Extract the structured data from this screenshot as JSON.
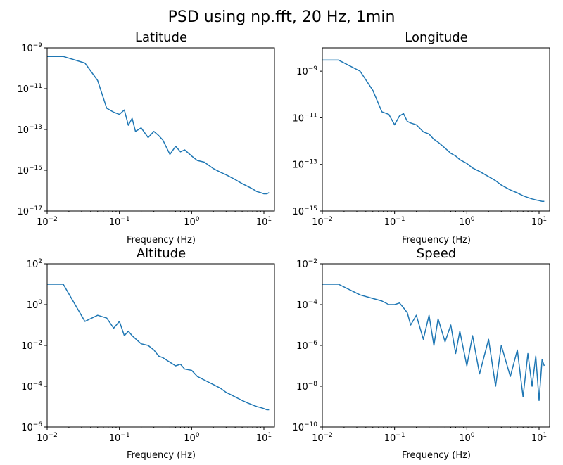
{
  "figure": {
    "suptitle": "PSD using np.fft, 20 Hz, 1min"
  },
  "series_color": "#1f77b4",
  "chart_data": [
    {
      "type": "line",
      "title": "Latitude",
      "xlabel": "Frequency (Hz)",
      "ylabel": "",
      "xscale": "log",
      "yscale": "log",
      "xlim": [
        0.01,
        14
      ],
      "ylim": [
        1e-17,
        1e-09
      ],
      "xticks": [
        {
          "base": "10",
          "exp": "−2",
          "value": 0.01
        },
        {
          "base": "10",
          "exp": "−1",
          "value": 0.1
        },
        {
          "base": "10",
          "exp": "0",
          "value": 1
        },
        {
          "base": "10",
          "exp": "1",
          "value": 10
        }
      ],
      "yticks": [
        {
          "base": "10",
          "exp": "−17",
          "value": 1e-17
        },
        {
          "base": "10",
          "exp": "−15",
          "value": 1e-15
        },
        {
          "base": "10",
          "exp": "−13",
          "value": 1e-13
        },
        {
          "base": "10",
          "exp": "−11",
          "value": 1e-11
        },
        {
          "base": "10",
          "exp": "−9",
          "value": 1e-09
        }
      ],
      "grid": false,
      "x": [
        0.01,
        0.0167,
        0.0333,
        0.05,
        0.0667,
        0.0833,
        0.1,
        0.117,
        0.133,
        0.15,
        0.167,
        0.2,
        0.25,
        0.3,
        0.35,
        0.4,
        0.5,
        0.6,
        0.7,
        0.8,
        1.0,
        1.2,
        1.5,
        2.0,
        2.5,
        3.0,
        4.0,
        5.0,
        6.0,
        7.0,
        8.0,
        9.0,
        10.0,
        11.0,
        11.8
      ],
      "y": [
        3.8e-10,
        3.8e-10,
        1.8e-10,
        2.5e-11,
        1.1e-12,
        7e-13,
        5.5e-13,
        9e-13,
        1.6e-13,
        3.5e-13,
        8e-14,
        1.2e-13,
        4e-14,
        8e-14,
        5e-14,
        3e-14,
        6e-15,
        1.5e-14,
        8e-15,
        1e-14,
        5e-15,
        3e-15,
        2.5e-15,
        1.2e-15,
        8e-16,
        6e-16,
        3.5e-16,
        2.2e-16,
        1.6e-16,
        1.2e-16,
        9e-17,
        8e-17,
        7e-17,
        7e-17,
        8e-17
      ]
    },
    {
      "type": "line",
      "title": "Longitude",
      "xlabel": "Frequency (Hz)",
      "ylabel": "",
      "xscale": "log",
      "yscale": "log",
      "xlim": [
        0.01,
        14
      ],
      "ylim": [
        1e-15,
        1e-08
      ],
      "xticks": [
        {
          "base": "10",
          "exp": "−2",
          "value": 0.01
        },
        {
          "base": "10",
          "exp": "−1",
          "value": 0.1
        },
        {
          "base": "10",
          "exp": "0",
          "value": 1
        },
        {
          "base": "10",
          "exp": "1",
          "value": 10
        }
      ],
      "yticks": [
        {
          "base": "10",
          "exp": "−15",
          "value": 1e-15
        },
        {
          "base": "10",
          "exp": "−13",
          "value": 1e-13
        },
        {
          "base": "10",
          "exp": "−11",
          "value": 1e-11
        },
        {
          "base": "10",
          "exp": "−9",
          "value": 1e-09
        }
      ],
      "grid": false,
      "x": [
        0.01,
        0.0167,
        0.0333,
        0.05,
        0.0667,
        0.0833,
        0.1,
        0.117,
        0.133,
        0.15,
        0.167,
        0.2,
        0.25,
        0.3,
        0.35,
        0.4,
        0.5,
        0.6,
        0.7,
        0.8,
        1.0,
        1.2,
        1.5,
        2.0,
        2.5,
        3.0,
        4.0,
        5.0,
        6.0,
        7.0,
        8.0,
        9.0,
        10.0,
        11.0,
        11.8
      ],
      "y": [
        3e-09,
        3e-09,
        1e-09,
        1.5e-10,
        1.8e-11,
        1.4e-11,
        5e-12,
        1.2e-11,
        1.5e-11,
        7e-12,
        6e-12,
        5e-12,
        2.5e-12,
        2e-12,
        1.2e-12,
        9e-13,
        5e-13,
        3e-13,
        2.3e-13,
        1.6e-13,
        1.1e-13,
        7e-14,
        5e-14,
        3e-14,
        2e-14,
        1.3e-14,
        8e-15,
        6e-15,
        4.5e-15,
        3.8e-15,
        3.3e-15,
        3e-15,
        2.8e-15,
        2.6e-15,
        2.6e-15
      ]
    },
    {
      "type": "line",
      "title": "Altitude",
      "xlabel": "Frequency (Hz)",
      "ylabel": "",
      "xscale": "log",
      "yscale": "log",
      "xlim": [
        0.01,
        14
      ],
      "ylim": [
        1e-06,
        100
      ],
      "xticks": [
        {
          "base": "10",
          "exp": "−2",
          "value": 0.01
        },
        {
          "base": "10",
          "exp": "−1",
          "value": 0.1
        },
        {
          "base": "10",
          "exp": "0",
          "value": 1
        },
        {
          "base": "10",
          "exp": "1",
          "value": 10
        }
      ],
      "yticks": [
        {
          "base": "10",
          "exp": "−6",
          "value": 1e-06
        },
        {
          "base": "10",
          "exp": "−4",
          "value": 0.0001
        },
        {
          "base": "10",
          "exp": "−2",
          "value": 0.01
        },
        {
          "base": "10",
          "exp": "0",
          "value": 1
        },
        {
          "base": "10",
          "exp": "2",
          "value": 100
        }
      ],
      "grid": false,
      "x": [
        0.01,
        0.0167,
        0.0333,
        0.05,
        0.0667,
        0.0833,
        0.1,
        0.117,
        0.133,
        0.15,
        0.2,
        0.25,
        0.3,
        0.35,
        0.4,
        0.5,
        0.6,
        0.7,
        0.8,
        1.0,
        1.2,
        1.5,
        2.0,
        2.5,
        3.0,
        4.0,
        5.0,
        6.0,
        7.0,
        8.0,
        9.0,
        10.0,
        11.0,
        11.8
      ],
      "y": [
        10,
        10,
        0.15,
        0.3,
        0.22,
        0.07,
        0.15,
        0.03,
        0.05,
        0.03,
        0.012,
        0.01,
        0.006,
        0.003,
        0.0025,
        0.0015,
        0.001,
        0.0012,
        0.0007,
        0.0006,
        0.0003,
        0.0002,
        0.00012,
        8e-05,
        5e-05,
        3e-05,
        2e-05,
        1.5e-05,
        1.2e-05,
        1e-05,
        9e-06,
        8e-06,
        7e-06,
        7e-06
      ]
    },
    {
      "type": "line",
      "title": "Speed",
      "xlabel": "Frequency (Hz)",
      "ylabel": "",
      "xscale": "log",
      "yscale": "log",
      "xlim": [
        0.01,
        14
      ],
      "ylim": [
        1e-10,
        0.01
      ],
      "xticks": [
        {
          "base": "10",
          "exp": "−2",
          "value": 0.01
        },
        {
          "base": "10",
          "exp": "−1",
          "value": 0.1
        },
        {
          "base": "10",
          "exp": "0",
          "value": 1
        },
        {
          "base": "10",
          "exp": "1",
          "value": 10
        }
      ],
      "yticks": [
        {
          "base": "10",
          "exp": "−10",
          "value": 1e-10
        },
        {
          "base": "10",
          "exp": "−8",
          "value": 1e-08
        },
        {
          "base": "10",
          "exp": "−6",
          "value": 1e-06
        },
        {
          "base": "10",
          "exp": "−4",
          "value": 0.0001
        },
        {
          "base": "10",
          "exp": "−2",
          "value": 0.01
        }
      ],
      "grid": false,
      "x": [
        0.01,
        0.0167,
        0.0333,
        0.05,
        0.0667,
        0.0833,
        0.1,
        0.117,
        0.133,
        0.15,
        0.167,
        0.2,
        0.25,
        0.3,
        0.35,
        0.4,
        0.5,
        0.6,
        0.7,
        0.8,
        1.0,
        1.2,
        1.5,
        2.0,
        2.5,
        3.0,
        4.0,
        5.0,
        6.0,
        7.0,
        8.0,
        9.0,
        10.0,
        11.0,
        11.8
      ],
      "y": [
        0.001,
        0.001,
        0.0003,
        0.0002,
        0.00015,
        0.0001,
        0.0001,
        0.00012,
        7e-05,
        4e-05,
        1e-05,
        3e-05,
        2e-06,
        3e-05,
        1e-06,
        2e-05,
        1.5e-06,
        1e-05,
        4e-07,
        5e-06,
        1e-07,
        3e-06,
        4e-08,
        2e-06,
        1e-08,
        1e-06,
        3e-08,
        6e-07,
        3e-09,
        4e-07,
        1e-08,
        3e-07,
        2e-09,
        2e-07,
        1e-07
      ]
    }
  ]
}
